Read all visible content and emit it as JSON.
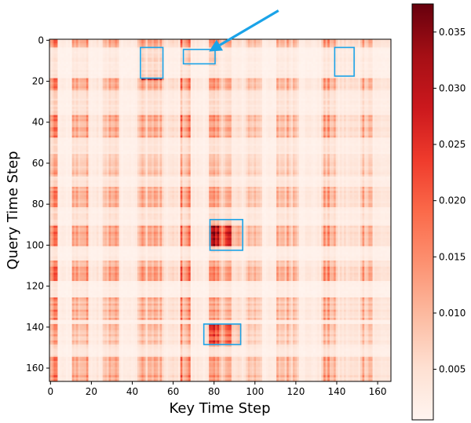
{
  "chart_data": {
    "type": "heatmap",
    "title": "",
    "xlabel": "Key Time Step",
    "ylabel": "Query Time Step",
    "xlim": [
      0,
      167
    ],
    "ylim": [
      0,
      167
    ],
    "x_ticks": [
      0,
      20,
      40,
      60,
      80,
      100,
      120,
      140,
      160
    ],
    "y_ticks": [
      0,
      20,
      40,
      60,
      80,
      100,
      120,
      140,
      160
    ],
    "colormap": "Reds",
    "colorbar": {
      "vmin": 0.0005,
      "vmax": 0.0375,
      "ticks": [
        0.005,
        0.01,
        0.015,
        0.02,
        0.025,
        0.03,
        0.035
      ],
      "tick_labels": [
        "0.005",
        "0.010",
        "0.015",
        "0.020",
        "0.025",
        "0.030",
        "0.035"
      ]
    },
    "row_segments": [
      0,
      4,
      19,
      25,
      37,
      48,
      56,
      67,
      72,
      82,
      91,
      101,
      108,
      118,
      126,
      137,
      139,
      149,
      155,
      167
    ],
    "col_segments": [
      0,
      4,
      11,
      19,
      26,
      34,
      43,
      55,
      64,
      69,
      78,
      89,
      96,
      104,
      111,
      122,
      133,
      140,
      152,
      158,
      167
    ],
    "highlight_boxes": [
      {
        "name": "box-1",
        "x": [
          44.5,
          55.5
        ],
        "y": [
          4,
          19
        ]
      },
      {
        "name": "box-2",
        "x": [
          65.5,
          81
        ],
        "y": [
          5,
          12
        ]
      },
      {
        "name": "box-3",
        "x": [
          139.5,
          149
        ],
        "y": [
          4,
          18
        ]
      },
      {
        "name": "box-4",
        "x": [
          78.5,
          94.5
        ],
        "y": [
          88,
          103
        ]
      },
      {
        "name": "box-5",
        "x": [
          75.5,
          93.5
        ],
        "y": [
          139,
          149
        ]
      }
    ],
    "arrow": {
      "from": [
        112,
        -14
      ],
      "to": [
        78,
        6
      ]
    }
  },
  "colors": {
    "box": "#1aa3e8",
    "arrow": "#1aa3e8",
    "cmap_low": "#fff5f0",
    "cmap_high": "#67000d"
  }
}
